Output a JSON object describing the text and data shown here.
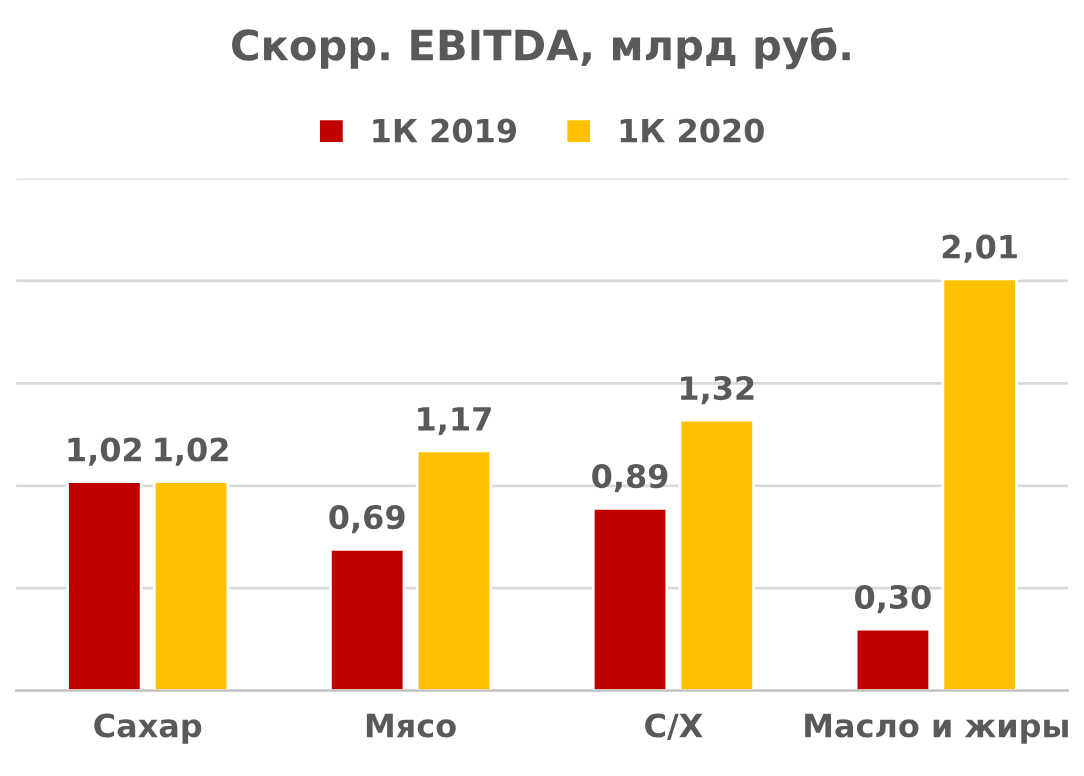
{
  "chart_data": {
    "type": "bar",
    "title": "Скорр. EBITDA, млрд руб.",
    "categories": [
      "Сахар",
      "Мясо",
      "С/Х",
      "Масло и жиры"
    ],
    "series": [
      {
        "name": "1К 2019",
        "color": "#c00000",
        "values": [
          1.02,
          0.69,
          0.89,
          0.3
        ],
        "value_labels": [
          "1,02",
          "0,69",
          "0,89",
          "0,30"
        ]
      },
      {
        "name": "1К 2020",
        "color": "#ffc000",
        "values": [
          1.02,
          1.17,
          1.32,
          2.01
        ],
        "value_labels": [
          "1,02",
          "1,17",
          "1,32",
          "2,01"
        ]
      }
    ],
    "ylim": [
      0,
      2.5
    ],
    "yticks": [
      {
        "value": 0,
        "label": null
      },
      {
        "value": 0.5,
        "label": null
      },
      {
        "value": 1.0,
        "label": null
      },
      {
        "value": 1.5,
        "label": null
      },
      {
        "value": 2.0,
        "label": null
      },
      {
        "value": 2.5,
        "label": null
      }
    ],
    "tick_labels": "x",
    "grid": "y",
    "legend": "top"
  }
}
